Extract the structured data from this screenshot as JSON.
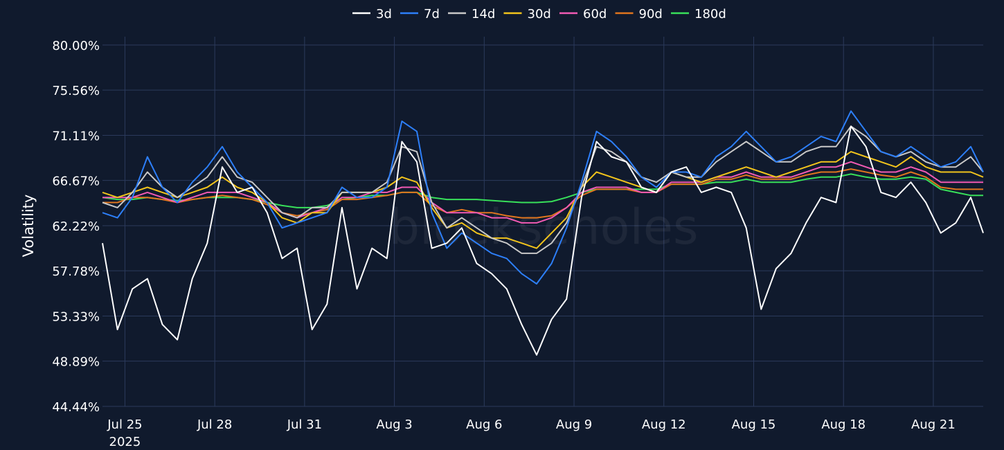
{
  "chart_data": {
    "type": "line",
    "title": "",
    "xlabel": "",
    "ylabel": "Volatility",
    "watermark": "blockscholes",
    "ylim": [
      44.44,
      80.0
    ],
    "yticks": [
      "80.00%",
      "75.56%",
      "71.11%",
      "66.67%",
      "62.22%",
      "57.78%",
      "53.33%",
      "48.89%",
      "44.44%"
    ],
    "xlim": [
      "2025-07-24T06:00",
      "2025-08-22T16:00"
    ],
    "xticks": [
      {
        "date": "2025-07-25",
        "label": "Jul 25",
        "sublabel": "2025"
      },
      {
        "date": "2025-07-28",
        "label": "Jul 28"
      },
      {
        "date": "2025-07-31",
        "label": "Jul 31"
      },
      {
        "date": "2025-08-03",
        "label": "Aug 3"
      },
      {
        "date": "2025-08-06",
        "label": "Aug 6"
      },
      {
        "date": "2025-08-09",
        "label": "Aug 9"
      },
      {
        "date": "2025-08-12",
        "label": "Aug 12"
      },
      {
        "date": "2025-08-15",
        "label": "Aug 15"
      },
      {
        "date": "2025-08-18",
        "label": "Aug 18"
      },
      {
        "date": "2025-08-21",
        "label": "Aug 21"
      }
    ],
    "grid": true,
    "legend_position": "top-center",
    "x": [
      "2025-07-24T06:00",
      "2025-07-24T18:00",
      "2025-07-25T06:00",
      "2025-07-25T18:00",
      "2025-07-26T06:00",
      "2025-07-26T18:00",
      "2025-07-27T06:00",
      "2025-07-27T18:00",
      "2025-07-28T06:00",
      "2025-07-28T18:00",
      "2025-07-29T06:00",
      "2025-07-29T18:00",
      "2025-07-30T06:00",
      "2025-07-30T18:00",
      "2025-07-31T06:00",
      "2025-07-31T18:00",
      "2025-08-01T06:00",
      "2025-08-01T18:00",
      "2025-08-02T06:00",
      "2025-08-02T18:00",
      "2025-08-03T06:00",
      "2025-08-03T18:00",
      "2025-08-04T06:00",
      "2025-08-04T18:00",
      "2025-08-05T06:00",
      "2025-08-05T18:00",
      "2025-08-06T06:00",
      "2025-08-06T18:00",
      "2025-08-07T06:00",
      "2025-08-07T18:00",
      "2025-08-08T06:00",
      "2025-08-08T18:00",
      "2025-08-09T06:00",
      "2025-08-09T18:00",
      "2025-08-10T06:00",
      "2025-08-10T18:00",
      "2025-08-11T06:00",
      "2025-08-11T18:00",
      "2025-08-12T06:00",
      "2025-08-12T18:00",
      "2025-08-13T06:00",
      "2025-08-13T18:00",
      "2025-08-14T06:00",
      "2025-08-14T18:00",
      "2025-08-15T06:00",
      "2025-08-15T18:00",
      "2025-08-16T06:00",
      "2025-08-16T18:00",
      "2025-08-17T06:00",
      "2025-08-17T18:00",
      "2025-08-18T06:00",
      "2025-08-18T18:00",
      "2025-08-19T06:00",
      "2025-08-19T18:00",
      "2025-08-20T06:00",
      "2025-08-20T18:00",
      "2025-08-21T06:00",
      "2025-08-21T18:00",
      "2025-08-22T06:00",
      "2025-08-22T16:00"
    ],
    "series": [
      {
        "name": "3d",
        "color": "#ffffff",
        "values": [
          60.5,
          52.0,
          56.0,
          57.0,
          52.5,
          51.0,
          57.0,
          60.5,
          68.0,
          65.5,
          66.0,
          63.5,
          59.0,
          60.0,
          52.0,
          54.5,
          64.0,
          56.0,
          60.0,
          59.0,
          70.5,
          68.5,
          60.0,
          60.5,
          62.0,
          58.5,
          57.5,
          56.0,
          52.5,
          49.5,
          53.0,
          55.0,
          65.0,
          70.5,
          69.0,
          68.5,
          66.0,
          65.5,
          67.5,
          68.0,
          65.5,
          66.0,
          65.5,
          62.0,
          54.0,
          58.0,
          59.5,
          62.5,
          65.0,
          64.5,
          72.0,
          70.0,
          65.5,
          65.0,
          66.5,
          64.5,
          61.5,
          62.5,
          65.0,
          61.5
        ]
      },
      {
        "name": "7d",
        "color": "#2d7ff9",
        "values": [
          63.5,
          63.0,
          65.0,
          69.0,
          66.0,
          64.5,
          66.5,
          68.0,
          70.0,
          67.5,
          66.0,
          64.5,
          62.0,
          62.5,
          63.0,
          63.5,
          66.0,
          65.0,
          65.0,
          66.0,
          72.5,
          71.5,
          63.5,
          60.0,
          61.5,
          60.5,
          59.5,
          59.0,
          57.5,
          56.5,
          58.5,
          62.0,
          66.5,
          71.5,
          70.5,
          69.0,
          67.0,
          66.0,
          67.5,
          67.5,
          67.0,
          69.0,
          70.0,
          71.5,
          70.0,
          68.5,
          69.0,
          70.0,
          71.0,
          70.5,
          73.5,
          71.5,
          69.5,
          69.0,
          70.0,
          69.0,
          68.0,
          68.5,
          70.0,
          67.5
        ]
      },
      {
        "name": "14d",
        "color": "#c8c8c8",
        "values": [
          64.5,
          64.0,
          65.5,
          67.5,
          66.0,
          65.0,
          66.0,
          67.0,
          69.0,
          67.0,
          66.5,
          65.0,
          63.5,
          63.0,
          64.0,
          64.0,
          65.5,
          65.5,
          65.5,
          66.5,
          70.0,
          69.5,
          64.5,
          62.0,
          63.0,
          62.0,
          61.0,
          60.5,
          59.5,
          59.5,
          60.5,
          62.5,
          66.0,
          70.0,
          69.5,
          68.5,
          67.0,
          66.5,
          67.5,
          67.0,
          67.0,
          68.5,
          69.5,
          70.5,
          69.5,
          68.5,
          68.5,
          69.5,
          70.0,
          70.0,
          72.0,
          71.0,
          69.5,
          69.0,
          69.5,
          68.5,
          68.0,
          68.0,
          69.0,
          67.5
        ]
      },
      {
        "name": "30d",
        "color": "#f2c41c",
        "values": [
          65.5,
          65.0,
          65.5,
          66.0,
          65.5,
          65.0,
          65.5,
          66.0,
          67.0,
          66.0,
          65.5,
          64.5,
          63.0,
          62.5,
          63.5,
          63.5,
          65.5,
          65.5,
          65.5,
          66.0,
          67.0,
          66.5,
          64.0,
          62.0,
          62.5,
          61.5,
          61.0,
          61.0,
          60.5,
          60.0,
          61.5,
          63.0,
          66.0,
          67.5,
          67.0,
          66.5,
          66.0,
          65.5,
          67.5,
          67.0,
          66.5,
          67.0,
          67.5,
          68.0,
          67.5,
          67.0,
          67.5,
          68.0,
          68.5,
          68.5,
          69.5,
          69.0,
          68.5,
          68.0,
          69.0,
          68.0,
          67.5,
          67.5,
          67.5,
          67.0
        ]
      },
      {
        "name": "60d",
        "color": "#f25ab4",
        "values": [
          65.0,
          65.0,
          65.0,
          65.5,
          65.0,
          64.5,
          65.0,
          65.5,
          65.5,
          65.5,
          65.0,
          64.5,
          63.5,
          63.0,
          63.5,
          64.0,
          65.0,
          65.0,
          65.5,
          65.5,
          66.0,
          66.0,
          64.5,
          63.5,
          63.5,
          63.5,
          63.0,
          63.0,
          62.5,
          62.5,
          63.0,
          64.0,
          65.5,
          66.0,
          66.0,
          66.0,
          65.5,
          65.5,
          66.5,
          66.5,
          66.5,
          67.0,
          67.0,
          67.5,
          67.0,
          67.0,
          67.0,
          67.5,
          68.0,
          68.0,
          68.5,
          68.0,
          67.5,
          67.5,
          68.0,
          67.5,
          66.5,
          66.5,
          66.5,
          66.5
        ]
      },
      {
        "name": "90d",
        "color": "#e0751e",
        "values": [
          64.5,
          64.5,
          65.0,
          65.0,
          64.8,
          64.5,
          64.8,
          65.0,
          65.2,
          65.0,
          64.8,
          64.3,
          63.5,
          63.2,
          63.5,
          63.8,
          64.8,
          64.8,
          65.0,
          65.2,
          65.5,
          65.5,
          64.2,
          63.5,
          63.8,
          63.5,
          63.5,
          63.2,
          63.0,
          63.0,
          63.2,
          64.0,
          65.2,
          65.8,
          65.8,
          65.8,
          65.5,
          65.5,
          66.3,
          66.3,
          66.3,
          66.8,
          66.8,
          67.2,
          66.8,
          66.8,
          66.8,
          67.2,
          67.5,
          67.5,
          67.8,
          67.5,
          67.2,
          67.0,
          67.5,
          67.0,
          66.0,
          65.8,
          65.8,
          65.8
        ]
      },
      {
        "name": "180d",
        "color": "#38e05a",
        "values": [
          65.0,
          64.8,
          64.8,
          65.0,
          64.8,
          64.7,
          64.8,
          65.0,
          65.0,
          65.0,
          64.8,
          64.5,
          64.2,
          64.0,
          64.0,
          64.2,
          64.8,
          65.0,
          65.2,
          65.2,
          65.5,
          65.5,
          65.0,
          64.8,
          64.8,
          64.8,
          64.7,
          64.6,
          64.5,
          64.5,
          64.6,
          65.0,
          65.5,
          65.8,
          65.8,
          65.8,
          65.8,
          65.8,
          66.3,
          66.3,
          66.3,
          66.5,
          66.5,
          66.8,
          66.5,
          66.5,
          66.5,
          66.8,
          67.0,
          67.0,
          67.3,
          67.0,
          66.8,
          66.8,
          67.0,
          66.8,
          65.8,
          65.5,
          65.2,
          65.2
        ]
      }
    ]
  }
}
